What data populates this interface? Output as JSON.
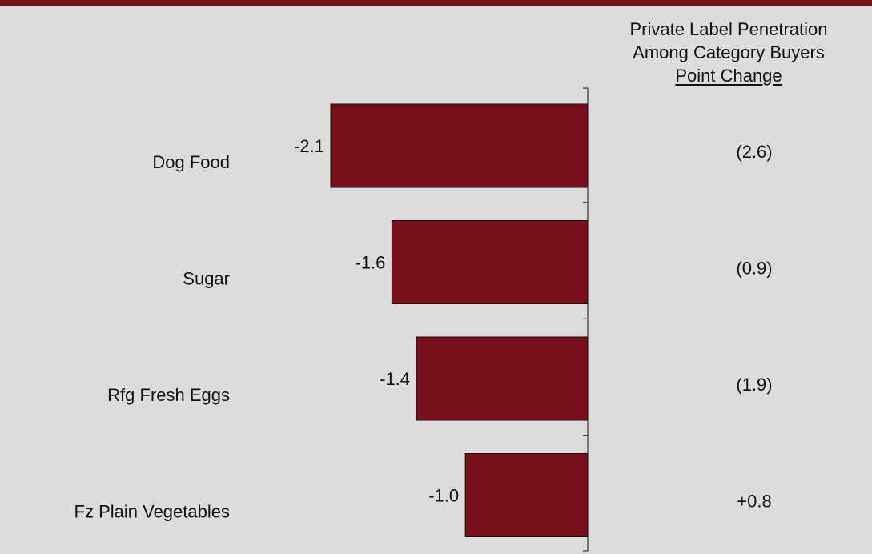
{
  "colors": {
    "bar": "#7a0f1c",
    "top_bar": "#7a0f1c",
    "background": "#dcdcdc"
  },
  "header": {
    "line1": "Private Label Penetration",
    "line2": "Among Category Buyers",
    "line3": "Point Change"
  },
  "chart_data": {
    "type": "bar",
    "orientation": "horizontal",
    "categories": [
      "Dog Food",
      "Sugar",
      "Rfg Fresh Eggs",
      "Fz Plain Vegetables"
    ],
    "values": [
      -2.1,
      -1.6,
      -1.4,
      -1.0
    ],
    "value_labels": [
      "-2.1",
      "-1.6",
      "-1.4",
      "-1.0"
    ],
    "point_change": [
      "(2.6)",
      "(0.9)",
      "(1.9)",
      "+0.8"
    ],
    "xlim": [
      -2.1,
      0
    ],
    "grid": false,
    "legend": "none"
  }
}
